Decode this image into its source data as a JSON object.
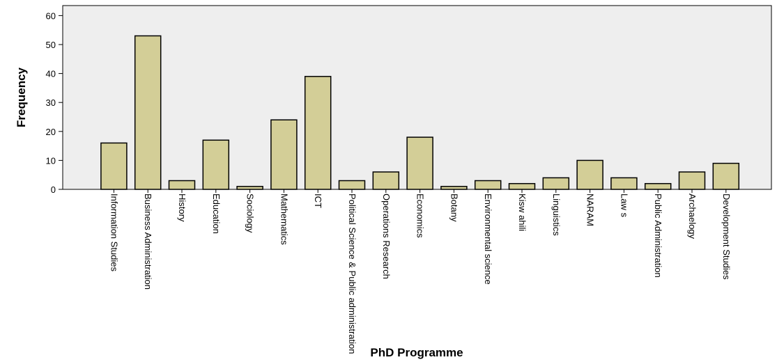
{
  "chart_data": {
    "type": "bar",
    "title": "",
    "xlabel": "PhD Programme",
    "ylabel": "Frequency",
    "ylim": [
      0,
      62
    ],
    "yticks": [
      0,
      10,
      20,
      30,
      40,
      50,
      60
    ],
    "grid": false,
    "categories": [
      "Information Studies",
      "Business Administration",
      "History",
      "Education",
      "Sociology",
      "Mathematics",
      "ICT",
      "Political Science & Public administration",
      "Operations Research",
      "Economics",
      "Botany",
      "Environmental science",
      "Kisw ahili",
      "Linguistics",
      "NARAM",
      "Law s",
      "Public Administration",
      "Archaelogy",
      "Development Studies"
    ],
    "values": [
      16,
      53,
      3,
      17,
      1,
      24,
      39,
      3,
      6,
      18,
      1,
      3,
      2,
      4,
      10,
      4,
      2,
      6,
      9
    ],
    "colors": {
      "plot_background": "#eeeeee",
      "bar_fill": "#d3ce97",
      "bar_stroke": "#000000"
    }
  }
}
